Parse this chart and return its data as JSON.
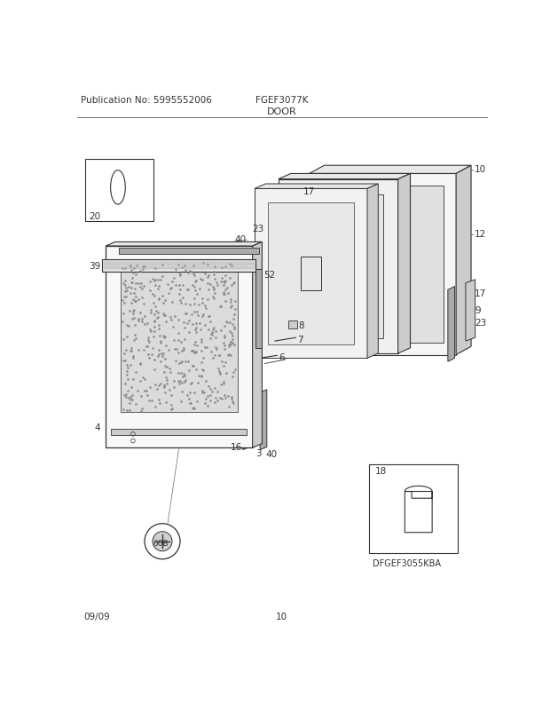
{
  "title_left": "Publication No: 5995552006",
  "title_center": "FGEF3077K",
  "subtitle": "DOOR",
  "footer_left": "09/09",
  "footer_center": "10",
  "bg_color": "#ffffff",
  "line_color": "#333333",
  "text_color": "#333333",
  "fig_width": 6.2,
  "fig_height": 8.03,
  "dpi": 100,
  "gray_light": "#e8e8e8",
  "gray_mid": "#cccccc",
  "gray_dark": "#aaaaaa"
}
